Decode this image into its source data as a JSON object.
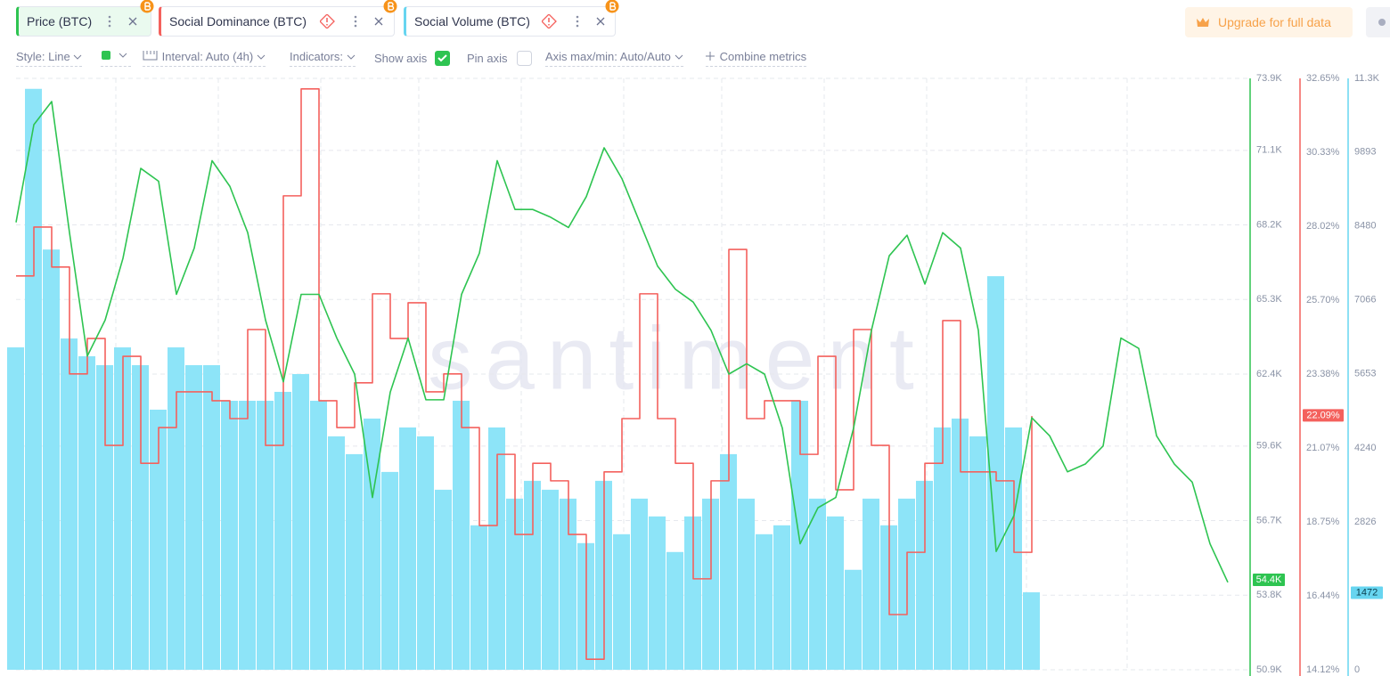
{
  "toolbar": [
    "Style: Line",
    "Interval: Auto (4h)",
    "Indicators:",
    "Show axis",
    "Pin axis",
    "Axis max/min: Auto/Auto",
    "Combine metrics"
  ],
  "upgrade": "Upgrade for full data",
  "chart_data": {
    "type": "line",
    "watermark": "santiment",
    "grid": true,
    "ylim": [
      50900,
      73900
    ],
    "yticks": [
      {
        "value": 50900,
        "label": "50.9K"
      },
      {
        "value": 53800,
        "label": "53.8K"
      },
      {
        "value": 56700,
        "label": "56.7K"
      },
      {
        "value": 59600,
        "label": "59.6K"
      },
      {
        "value": 62400,
        "label": "62.4K"
      },
      {
        "value": 65300,
        "label": "65.3K"
      },
      {
        "value": 68200,
        "label": "68.2K"
      },
      {
        "value": 71100,
        "label": "71.1K"
      },
      {
        "value": 73900,
        "label": "73.9K"
      }
    ],
    "y2lim": [
      14.12,
      32.65
    ],
    "y2ticks": [
      {
        "value": 14.12,
        "label": "14.12%"
      },
      {
        "value": 16.44,
        "label": "16.44%"
      },
      {
        "value": 18.75,
        "label": "18.75%"
      },
      {
        "value": 21.07,
        "label": "21.07%"
      },
      {
        "value": 23.38,
        "label": "23.38%"
      },
      {
        "value": 25.7,
        "label": "25.70%"
      },
      {
        "value": 28.02,
        "label": "28.02%"
      },
      {
        "value": 30.33,
        "label": "30.33%"
      },
      {
        "value": 32.65,
        "label": "32.65%"
      }
    ],
    "y3lim": [
      0,
      11300
    ],
    "y3ticks": [
      0,
      2826,
      4240,
      5653,
      7066,
      8480,
      9893,
      {
        "value": 11300,
        "label": "11.3K"
      }
    ],
    "series": [
      {
        "name": "Price (BTC)",
        "type": "line",
        "axis": "y",
        "color": "#2ec451",
        "current": {
          "value": 54400,
          "label": "54.4K"
        },
        "values": [
          68300,
          72100,
          73000,
          67900,
          63100,
          64500,
          66900,
          70400,
          69900,
          65500,
          67300,
          70700,
          69700,
          67900,
          64500,
          62100,
          65500,
          65500,
          63800,
          62400,
          57600,
          61700,
          63800,
          61400,
          61400,
          65500,
          67100,
          70700,
          68800,
          68800,
          68500,
          68100,
          69300,
          71200,
          70000,
          68300,
          66600,
          65700,
          65200,
          64100,
          62400,
          62800,
          62400,
          60300,
          55800,
          57200,
          57600,
          60300,
          64100,
          67000,
          67800,
          65900,
          67900,
          67300,
          64100,
          55500,
          56900,
          60700,
          60000,
          58600,
          58900,
          59600,
          63800,
          63400,
          60000,
          58900,
          58200,
          55800,
          54300
        ]
      },
      {
        "name": "Social Dominance (BTC)",
        "type": "step",
        "axis": "y2",
        "color": "#f4615d",
        "current": {
          "value": 22.09,
          "label": "22.09%"
        },
        "values": [
          26.46,
          27.99,
          26.74,
          23.39,
          24.5,
          21.15,
          23.94,
          20.59,
          21.71,
          22.83,
          22.83,
          22.55,
          21.99,
          24.78,
          21.15,
          28.97,
          32.32,
          22.55,
          21.71,
          23.11,
          25.9,
          24.5,
          25.62,
          22.83,
          23.39,
          21.71,
          18.64,
          20.87,
          18.36,
          20.59,
          20.04,
          18.36,
          14.45,
          20.32,
          21.99,
          25.9,
          21.99,
          20.59,
          16.97,
          20.04,
          27.29,
          21.99,
          22.55,
          22.55,
          20.87,
          23.94,
          19.76,
          24.78,
          21.15,
          15.85,
          17.8,
          20.59,
          25.06,
          20.32,
          20.32,
          20.04,
          17.8,
          22.07,
          null,
          null,
          null,
          null,
          null,
          null,
          null,
          null,
          null,
          null,
          null
        ]
      },
      {
        "name": "Social Volume (BTC)",
        "type": "bar",
        "axis": "y3",
        "color": "#8de4f8",
        "current": {
          "value": 1472,
          "label": "1472"
        },
        "values": [
          6160,
          11100,
          8030,
          6330,
          5990,
          5820,
          6160,
          5820,
          4970,
          6160,
          5820,
          5820,
          5140,
          5140,
          5140,
          5310,
          5650,
          5140,
          4460,
          4120,
          4800,
          3780,
          4630,
          4460,
          3440,
          5140,
          2760,
          4630,
          3270,
          3610,
          3440,
          3270,
          2420,
          3610,
          2590,
          3270,
          2930,
          2250,
          2930,
          3270,
          4120,
          3270,
          2590,
          2760,
          5140,
          3270,
          2930,
          1910,
          3270,
          2760,
          3270,
          3610,
          4630,
          4800,
          4460,
          7520,
          4630,
          1480,
          null,
          null,
          null,
          null,
          null,
          null,
          null,
          null,
          null,
          null,
          null
        ]
      }
    ]
  }
}
